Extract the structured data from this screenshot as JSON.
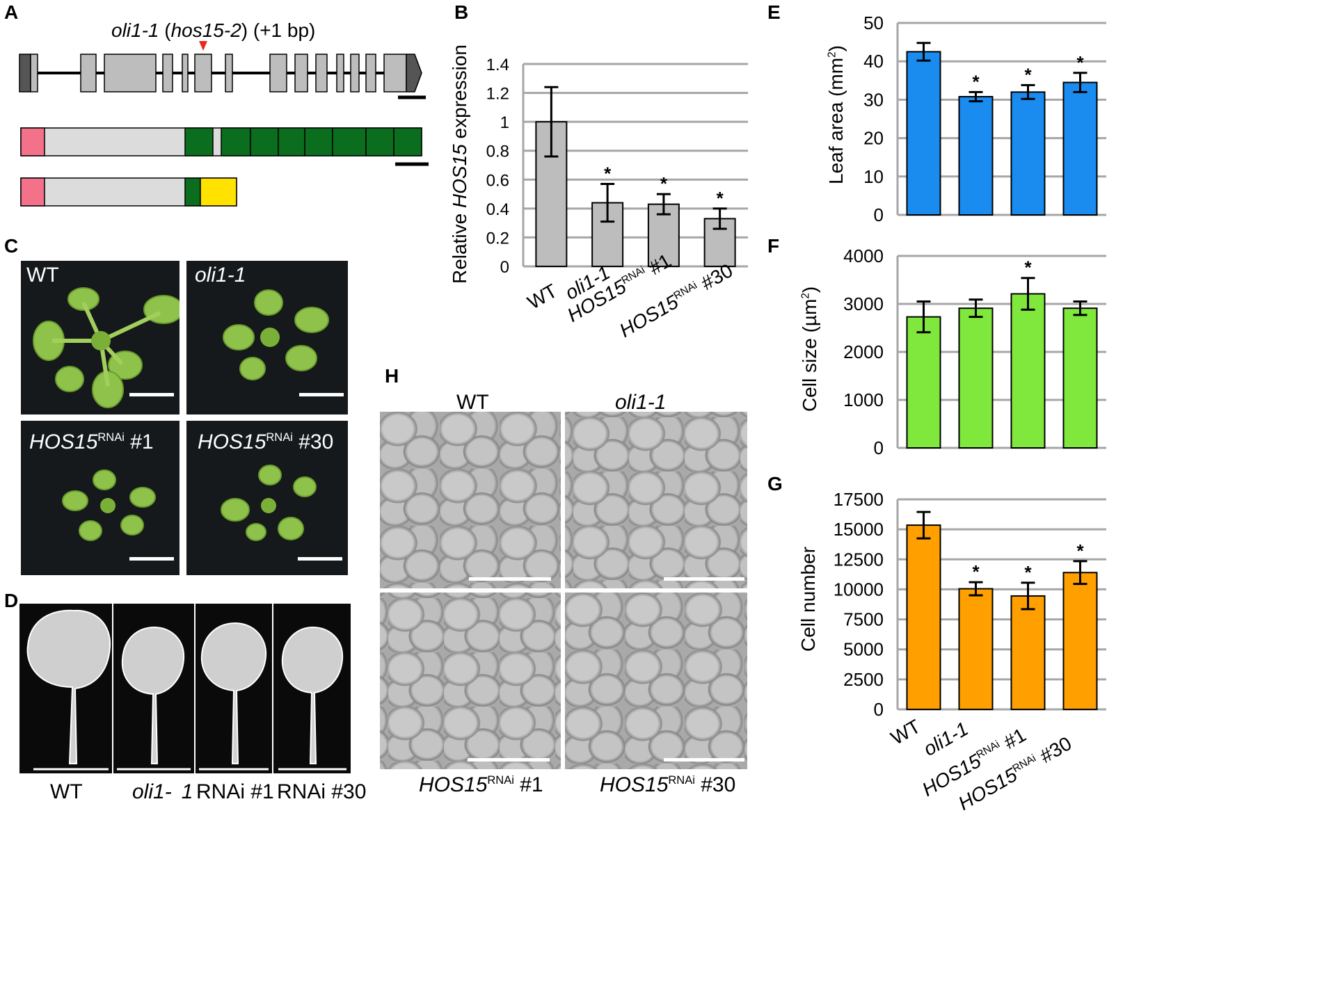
{
  "panelA": {
    "label": "A",
    "mutation_prefix": "oli1-1",
    "mutation_open": " (",
    "mutation_gene": "hos15-2",
    "mutation_close": ") (+1 bp)"
  },
  "panelB": {
    "label": "B",
    "ylabel_pre": "Relative ",
    "ylabel_gene": "HOS15",
    "ylabel_post": " expression"
  },
  "panelC": {
    "label": "C",
    "photos": [
      {
        "label": "WT",
        "italic": false
      },
      {
        "label": "oli1-1",
        "italic": true
      },
      {
        "label_gene": "HOS15",
        "label_sup": "RNAi",
        "label_suffix": " #1"
      },
      {
        "label_gene": "HOS15",
        "label_sup": "RNAi",
        "label_suffix": " #30"
      }
    ]
  },
  "panelD": {
    "label": "D",
    "captions": {
      "wt": "WT",
      "oli": "oli1-",
      "oli_num": "1",
      "rnai1": "RNAi #1",
      "rnai30": "RNAi #30"
    }
  },
  "panelE": {
    "label": "E",
    "ylabel": "Leaf area (mm",
    "ylabel_sup": "2",
    "ylabel_end": ")"
  },
  "panelF": {
    "label": "F",
    "ylabel": "Cell size (µm",
    "ylabel_sup": "2",
    "ylabel_end": ")"
  },
  "panelG": {
    "label": "G",
    "ylabel": "Cell number"
  },
  "panelH": {
    "label": "H",
    "top_left": "WT",
    "top_right": "oli1-1",
    "bottom_gene": "HOS15",
    "bottom_sup": "RNAi",
    "bottom_left_suffix": " #1",
    "bottom_right_suffix": " #30"
  },
  "colors": {
    "bar_gray": "#bdbdbd",
    "bar_blue": "#1a8cf0",
    "bar_green": "#80e83c",
    "bar_orange": "#ffa000",
    "domain_pink": "#f4718a",
    "domain_green": "#0b6e1e",
    "domain_yellow": "#ffe200",
    "mutation_red": "#e8291c"
  },
  "chart_data": [
    {
      "id": "B",
      "type": "bar",
      "categories": [
        "WT",
        "oli1-1",
        "HOS15RNAi #1",
        "HOS15RNAi #30"
      ],
      "values": [
        1.0,
        0.44,
        0.43,
        0.33
      ],
      "errors": [
        0.24,
        0.13,
        0.07,
        0.07
      ],
      "significant": [
        false,
        true,
        true,
        true
      ],
      "ylabel": "Relative HOS15 expression",
      "ylim": [
        0,
        1.4
      ],
      "yticks": [
        0,
        0.2,
        0.4,
        0.6,
        0.8,
        1,
        1.2,
        1.4
      ],
      "ytick_labels": [
        "0",
        "0.2",
        "0.4",
        "0.6",
        "0.8",
        "1",
        "1.2",
        "1.4"
      ],
      "grid": true
    },
    {
      "id": "E",
      "type": "bar",
      "categories": [
        "WT",
        "oli1-1",
        "HOS15RNAi #1",
        "HOS15RNAi #30"
      ],
      "values": [
        42.5,
        30.8,
        32.0,
        34.5
      ],
      "errors": [
        2.3,
        1.2,
        1.8,
        2.5
      ],
      "significant": [
        false,
        true,
        true,
        true
      ],
      "ylabel": "Leaf area (mm2)",
      "ylim": [
        0,
        50
      ],
      "yticks": [
        0,
        10,
        20,
        30,
        40,
        50
      ],
      "ytick_labels": [
        "0",
        "10",
        "20",
        "30",
        "40",
        "50"
      ],
      "grid": true
    },
    {
      "id": "F",
      "type": "bar",
      "categories": [
        "WT",
        "oli1-1",
        "HOS15RNAi #1",
        "HOS15RNAi #30"
      ],
      "values": [
        2730,
        2910,
        3210,
        2910
      ],
      "errors": [
        320,
        180,
        330,
        140
      ],
      "significant": [
        false,
        false,
        true,
        false
      ],
      "ylabel": "Cell size (µm2)",
      "ylim": [
        0,
        4000
      ],
      "yticks": [
        0,
        1000,
        2000,
        3000,
        4000
      ],
      "ytick_labels": [
        "0",
        "1000",
        "2000",
        "3000",
        "4000"
      ],
      "grid": true
    },
    {
      "id": "G",
      "type": "bar",
      "categories": [
        "WT",
        "oli1-1",
        "HOS15RNAi #1",
        "HOS15RNAi #30"
      ],
      "values": [
        15350,
        10050,
        9450,
        11400
      ],
      "errors": [
        1100,
        550,
        1100,
        950
      ],
      "significant": [
        false,
        true,
        true,
        true
      ],
      "ylabel": "Cell number",
      "ylim": [
        0,
        17500
      ],
      "yticks": [
        0,
        2500,
        5000,
        7500,
        10000,
        12500,
        15000,
        17500
      ],
      "ytick_labels": [
        "0",
        "2500",
        "5000",
        "7500",
        "10000",
        "12500",
        "15000",
        "17500"
      ],
      "grid": true
    }
  ],
  "xlabels": {
    "wt": "WT",
    "oli": "oli1-1",
    "gene": "HOS15",
    "sup": "RNAi",
    "s1": " #1",
    "s30": " #30"
  },
  "sig_marker": "*"
}
